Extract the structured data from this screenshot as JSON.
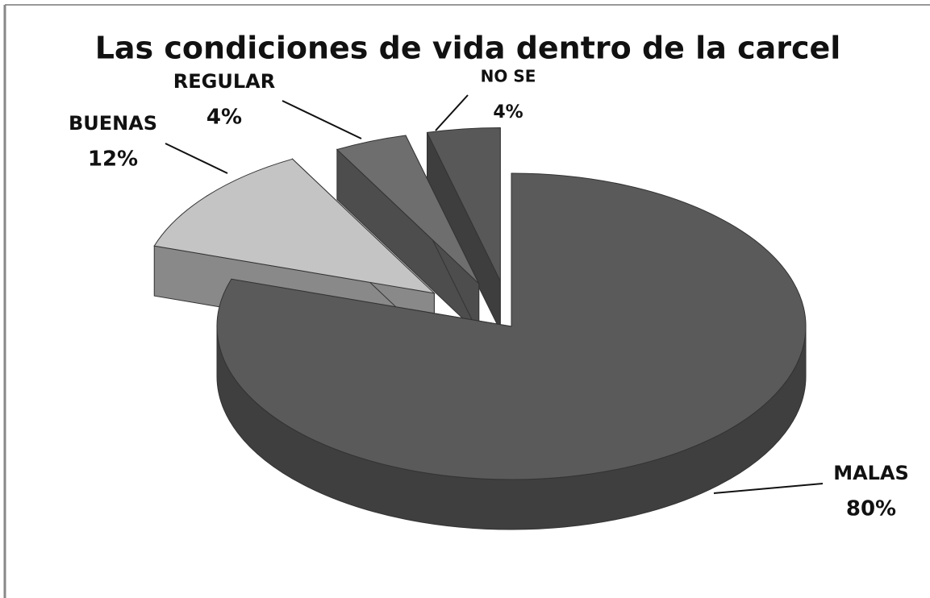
{
  "chart_data": {
    "type": "pie",
    "title": "Las condiciones de vida dentro de la carcel",
    "categories": [
      "MALAS",
      "BUENAS",
      "REGULAR",
      "NO SE"
    ],
    "values": [
      80,
      12,
      4,
      4
    ],
    "value_labels": [
      "80%",
      "12%",
      "4%",
      "4%"
    ],
    "colors": [
      "#5a5a5a",
      "#c4c4c4",
      "#6e6e6e",
      "#585858"
    ]
  }
}
